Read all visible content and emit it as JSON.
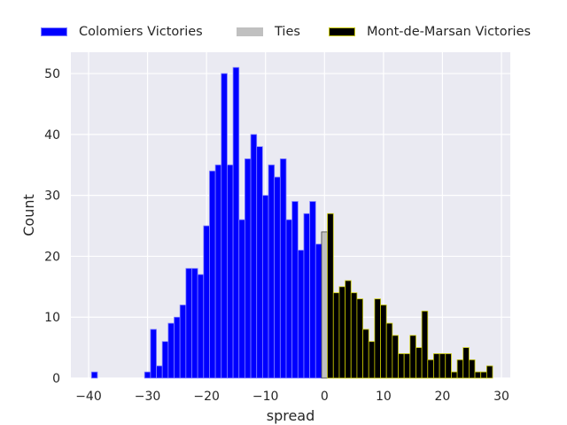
{
  "chart_data": {
    "type": "bar",
    "xlabel": "spread",
    "ylabel": "Count",
    "xlim": [
      -43,
      31.5
    ],
    "ylim": [
      0,
      53.5
    ],
    "xticks": [
      -40,
      -30,
      -20,
      -10,
      0,
      10,
      20,
      30
    ],
    "yticks": [
      0,
      10,
      20,
      30,
      40,
      50
    ],
    "grid": true,
    "legend_placement": "top",
    "series": [
      {
        "name": "Colomiers Victories",
        "color": "#0000ff",
        "edge": "#8080ff",
        "x": [
          -39,
          -30,
          -29,
          -28,
          -27,
          -26,
          -25,
          -24,
          -23,
          -22,
          -21,
          -20,
          -19,
          -18,
          -17,
          -16,
          -15,
          -14,
          -13,
          -12,
          -11,
          -10,
          -9,
          -8,
          -7,
          -6,
          -5,
          -4,
          -3,
          -2,
          -1
        ],
        "values": [
          1,
          1,
          8,
          2,
          6,
          9,
          10,
          12,
          18,
          18,
          17,
          25,
          34,
          35,
          50,
          35,
          51,
          26,
          36,
          40,
          38,
          30,
          35,
          33,
          36,
          26,
          29,
          21,
          27,
          29,
          22
        ]
      },
      {
        "name": "Ties",
        "color": "#c0c0c0",
        "edge": "#404040",
        "x": [
          0
        ],
        "values": [
          24
        ]
      },
      {
        "name": "Mont-de-Marsan Victories",
        "color": "#000000",
        "edge": "#c8c800",
        "x": [
          1,
          2,
          3,
          4,
          5,
          6,
          7,
          8,
          9,
          10,
          11,
          12,
          13,
          14,
          15,
          16,
          17,
          18,
          19,
          20,
          21,
          22,
          23,
          24,
          25,
          26,
          27,
          28
        ],
        "values": [
          27,
          14,
          15,
          16,
          14,
          13,
          8,
          6,
          13,
          12,
          9,
          7,
          4,
          4,
          7,
          5,
          11,
          3,
          4,
          4,
          4,
          1,
          3,
          5,
          3,
          1,
          1,
          2
        ]
      }
    ]
  }
}
